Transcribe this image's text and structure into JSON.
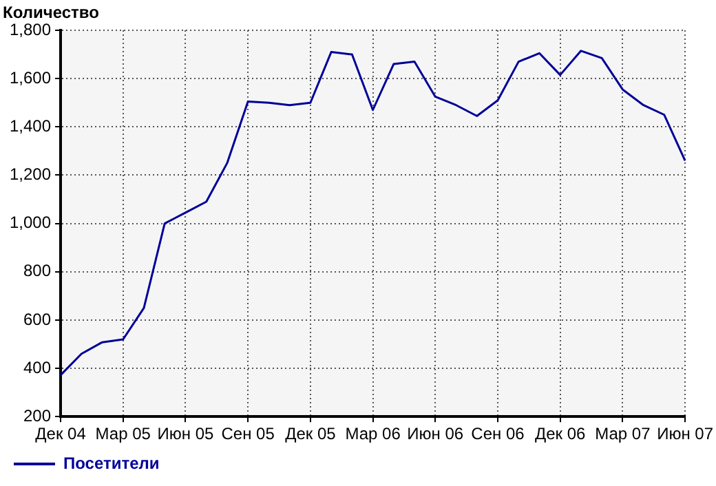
{
  "chart_data": {
    "type": "line",
    "ylabel": "Количество",
    "categories": [
      "Дек 04",
      null,
      null,
      "Мар 05",
      null,
      null,
      "Июн 05",
      null,
      null,
      "Сен 05",
      null,
      null,
      "Дек 05",
      null,
      null,
      "Мар 06",
      null,
      null,
      "Июн 06",
      null,
      null,
      "Сен 06",
      null,
      null,
      "Дек 06",
      null,
      null,
      "Мар 07",
      null,
      null,
      "Июн 07"
    ],
    "series": [
      {
        "name": "Посетители",
        "color": "#000099",
        "values": [
          372,
          460,
          508,
          520,
          650,
          1000,
          1045,
          1090,
          1250,
          1505,
          1500,
          1490,
          1500,
          1710,
          1700,
          1470,
          1660,
          1670,
          1525,
          1490,
          1445,
          1510,
          1670,
          1705,
          1615,
          1715,
          1685,
          1555,
          1490,
          1450,
          1260
        ]
      }
    ],
    "ylim": [
      200,
      1800
    ],
    "yticks": [
      {
        "value": 200,
        "label": "200"
      },
      {
        "value": 400,
        "label": "400"
      },
      {
        "value": 600,
        "label": "600"
      },
      {
        "value": 800,
        "label": "800"
      },
      {
        "value": 1000,
        "label": "1,000"
      },
      {
        "value": 1200,
        "label": "1,200"
      },
      {
        "value": 1400,
        "label": "1,400"
      },
      {
        "value": 1600,
        "label": "1,600"
      },
      {
        "value": 1800,
        "label": "1,800"
      }
    ],
    "grid": true,
    "legend": "bottom left",
    "marker": "none",
    "line_style": "solid"
  }
}
